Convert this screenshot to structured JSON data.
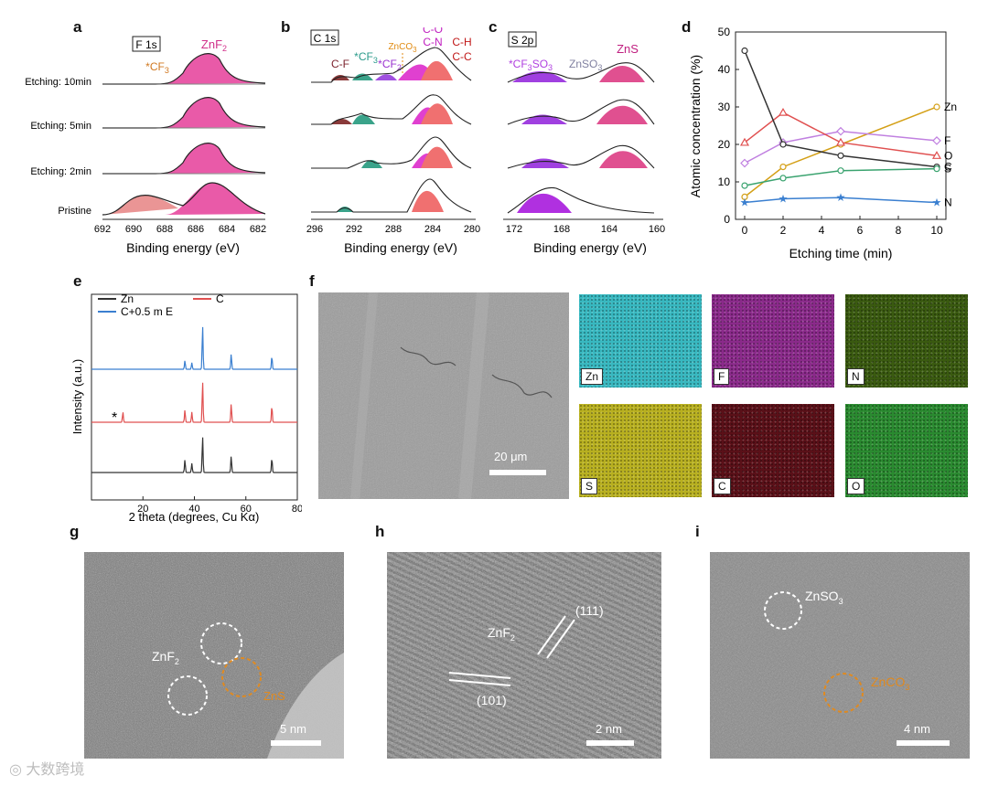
{
  "panels": {
    "a": "a",
    "b": "b",
    "c": "c",
    "d": "d",
    "e": "e",
    "f": "f",
    "g": "g",
    "h": "h",
    "i": "i"
  },
  "xps": {
    "rows": [
      "Etching: 10min",
      "Etching: 5min",
      "Etching: 2min",
      "Pristine"
    ],
    "a": {
      "box": "F 1s",
      "peak_main": "ZnF2",
      "peak_side": "*CF3",
      "ticks": [
        "692",
        "690",
        "688",
        "686",
        "684",
        "682"
      ],
      "xlabel": "Binding energy (eV)"
    },
    "b": {
      "box": "C 1s",
      "labels": {
        "cf": "C-F",
        "cf3": "*CF3",
        "cf2": "*CF",
        "znco3": "ZnCO3",
        "co": "C-O",
        "cn": "C-N",
        "ch": "C-H",
        "cc": "C-C"
      },
      "ticks": [
        "296",
        "292",
        "288",
        "284",
        "280"
      ],
      "xlabel": "Binding energy (eV)"
    },
    "c": {
      "box": "S 2p",
      "labels": {
        "cf3so3": "*CF3SO3",
        "znso3": "ZnSO3",
        "zns": "ZnS"
      },
      "ticks": [
        "172",
        "168",
        "164",
        "160"
      ],
      "xlabel": "Binding energy (eV)"
    }
  },
  "chart_data": [
    {
      "type": "line",
      "title": "",
      "xlabel": "Etching time (min)",
      "ylabel": "Atomic concentration (%)",
      "xlim": [
        0,
        10
      ],
      "ylim": [
        0,
        50
      ],
      "x": [
        0,
        2,
        5,
        10
      ],
      "xticks": [
        "0",
        "2",
        "4",
        "6",
        "8",
        "10"
      ],
      "yticks": [
        "0",
        "10",
        "20",
        "30",
        "40",
        "50"
      ],
      "series": [
        {
          "name": "Zn",
          "values": [
            6,
            14,
            20,
            30
          ],
          "color": "#d4a017",
          "marker": "circle"
        },
        {
          "name": "F",
          "values": [
            15,
            20.5,
            23.5,
            21
          ],
          "color": "#c080e0",
          "marker": "diamond"
        },
        {
          "name": "O",
          "values": [
            20.5,
            28.5,
            20.5,
            17
          ],
          "color": "#e05050",
          "marker": "triangle"
        },
        {
          "name": "C",
          "values": [
            45,
            20,
            17,
            14
          ],
          "color": "#333333",
          "marker": "circle"
        },
        {
          "name": "S",
          "values": [
            9,
            11,
            13,
            13.5
          ],
          "color": "#3aa36f",
          "marker": "circle"
        },
        {
          "name": "N",
          "values": [
            4.5,
            5.5,
            5.8,
            4.5
          ],
          "color": "#3a7fd0",
          "marker": "star"
        }
      ]
    },
    {
      "type": "line",
      "title": "",
      "xlabel": "2 theta (degrees, Cu Kα)",
      "ylabel": "Intensity (a.u.)",
      "xlim": [
        0,
        80
      ],
      "xticks": [
        "20",
        "40",
        "60",
        "80"
      ],
      "series": [
        {
          "name": "Zn",
          "color": "#333333",
          "peaks": [
            [
              36.3,
              0.35
            ],
            [
              39,
              0.25
            ],
            [
              43.2,
              1.0
            ],
            [
              54.3,
              0.45
            ],
            [
              70.1,
              0.4
            ]
          ]
        },
        {
          "name": "C",
          "color": "#e05050",
          "peaks": [
            [
              12.2,
              0.25
            ],
            [
              36.3,
              0.3
            ],
            [
              39,
              0.25
            ],
            [
              43.2,
              1.0
            ],
            [
              54.3,
              0.45
            ],
            [
              70.1,
              0.4
            ]
          ]
        },
        {
          "name": "C+0.5 m E",
          "color": "#3a7fd0",
          "peaks": [
            [
              36.3,
              0.2
            ],
            [
              39,
              0.15
            ],
            [
              43.2,
              1.0
            ],
            [
              54.3,
              0.35
            ],
            [
              70.1,
              0.3
            ]
          ]
        }
      ],
      "annotation": "*"
    }
  ],
  "sem": {
    "scale": "20 μm"
  },
  "eds": {
    "tiles": [
      {
        "el": "Zn",
        "color": "#38b8c0"
      },
      {
        "el": "F",
        "color": "#8a2a8a"
      },
      {
        "el": "N",
        "color": "#3a5a10"
      },
      {
        "el": "S",
        "color": "#b8b020"
      },
      {
        "el": "C",
        "color": "#5a1018"
      },
      {
        "el": "O",
        "color": "#2a8a30"
      }
    ]
  },
  "tem": {
    "g": {
      "label1": "ZnF2",
      "label2": "ZnS",
      "scale": "5 nm"
    },
    "h": {
      "label1": "ZnF2",
      "plane1": "(111)",
      "plane2": "(101)",
      "scale": "2 nm"
    },
    "i": {
      "label1": "ZnSO3",
      "label2": "ZnCO3",
      "scale": "4 nm"
    }
  },
  "watermark": "大数跨境"
}
